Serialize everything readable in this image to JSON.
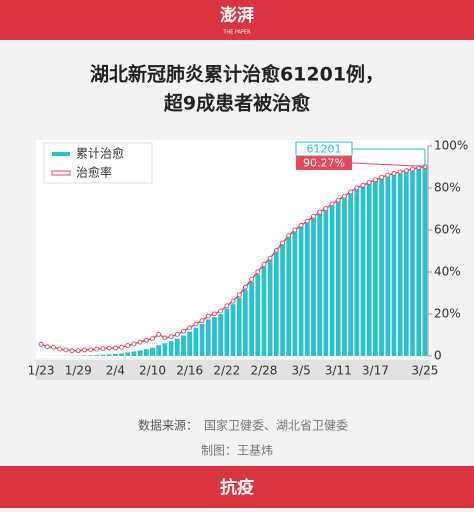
{
  "header": {
    "logo": "澎湃",
    "logo_sub": "THE PAPER"
  },
  "chart_data": {
    "type": "bar-line",
    "title": [
      "湖北新冠肺炎累计治愈61201例，",
      "超9成患者被治愈"
    ],
    "categories": [
      "1/23",
      null,
      null,
      null,
      null,
      null,
      "1/29",
      null,
      null,
      null,
      null,
      null,
      "2/4",
      null,
      null,
      null,
      null,
      null,
      "2/10",
      null,
      null,
      null,
      null,
      null,
      "2/16",
      null,
      null,
      null,
      null,
      null,
      "2/22",
      null,
      null,
      null,
      null,
      null,
      "2/28",
      null,
      null,
      null,
      null,
      null,
      "3/5",
      null,
      null,
      null,
      null,
      null,
      "3/11",
      null,
      null,
      null,
      null,
      null,
      "3/17",
      null,
      null,
      null,
      null,
      null,
      null,
      null,
      "3/25"
    ],
    "ylim": [
      0,
      67801
    ],
    "y2lim": [
      0,
      100
    ],
    "y2ticks": [
      0,
      {
        "value": 20,
        "label": "20%"
      },
      {
        "value": 40,
        "label": "40%"
      },
      {
        "value": 60,
        "label": "60%"
      },
      {
        "value": 80,
        "label": "80%"
      },
      {
        "value": 100,
        "label": "100%"
      }
    ],
    "legend": "upper left",
    "series": [
      {
        "name": "累计治愈",
        "color": "#27c1d0",
        "type": "bar",
        "values": [
          31,
          32,
          44,
          47,
          80,
          90,
          116,
          166,
          215,
          295,
          396,
          520,
          633,
          817,
          1115,
          1439,
          1795,
          2222,
          2639,
          3441,
          4131,
          4774,
          5623,
          6639,
          7862,
          9128,
          10337,
          11788,
          12552,
          13557,
          15299,
          16748,
          18854,
          21403,
          23913,
          26403,
          28895,
          31187,
          33757,
          36167,
          38556,
          40479,
          42033,
          43468,
          45011,
          46433,
          47585,
          49056,
          50298,
          51553,
          52943,
          54278,
          55094,
          55987,
          56883,
          57682,
          58381,
          58942,
          59432,
          59879,
          60324,
          60811,
          61201
        ]
      },
      {
        "name": "治愈率",
        "color": "#e9485b",
        "type": "line",
        "axis": "y2",
        "values": [
          5.6,
          4.4,
          4.2,
          3.3,
          2.9,
          2.5,
          2.5,
          2.9,
          3.0,
          3.3,
          3.5,
          3.8,
          3.8,
          4.2,
          5.0,
          5.8,
          6.6,
          7.5,
          8.3,
          10.3,
          8.6,
          9.2,
          10.3,
          11.8,
          13.5,
          15.2,
          16.8,
          19.0,
          20.0,
          21.4,
          23.9,
          26.1,
          29.1,
          32.8,
          36.5,
          40.1,
          43.6,
          46.6,
          50.3,
          53.8,
          57.3,
          60.0,
          62.2,
          64.2,
          66.5,
          68.5,
          70.2,
          72.4,
          74.2,
          76.1,
          78.1,
          80.1,
          81.3,
          82.6,
          83.9,
          85.1,
          86.1,
          86.9,
          87.7,
          88.3,
          89.0,
          89.7,
          90.27
        ],
        "value_labels": [
          null,
          null,
          null,
          null,
          null,
          null,
          null,
          null,
          null,
          null,
          null,
          null,
          null,
          null,
          null,
          null,
          null,
          null,
          null,
          null,
          null,
          null,
          null,
          null,
          null,
          null,
          null,
          null,
          null,
          null,
          null,
          null,
          null,
          null,
          null,
          null,
          null,
          null,
          null,
          null,
          null,
          null,
          null,
          null,
          null,
          null,
          null,
          null,
          null,
          null,
          null,
          null,
          null,
          null,
          null,
          null,
          null,
          null,
          null,
          null,
          null,
          null,
          "90.27%"
        ]
      }
    ]
  },
  "footer": {
    "source_label": "数据来源：",
    "source": "国家卫健委、湖北省卫健委",
    "credit": "制图：王基炜",
    "tag": "抗疫"
  }
}
